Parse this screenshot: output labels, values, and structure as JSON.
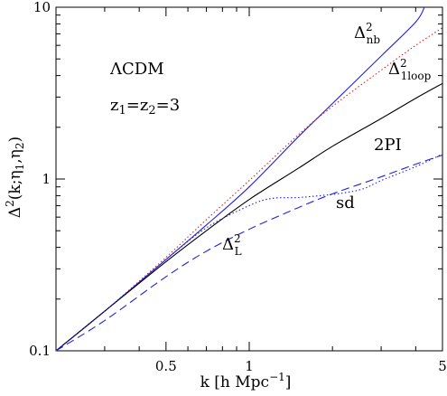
{
  "chart_data": {
    "type": "line",
    "xlabel": "k [h Mpc⁻¹]",
    "ylabel": "Δ²(k;η₁,η₂)",
    "xscale": "log",
    "yscale": "log",
    "xlim": [
      0.2,
      5
    ],
    "ylim": [
      0.1,
      10
    ],
    "x_ticks": [
      0.5,
      1,
      5
    ],
    "x_tick_labels": [
      "0.5",
      "1",
      "5"
    ],
    "y_ticks": [
      0.1,
      1,
      10
    ],
    "y_tick_labels": [
      "0.1",
      "1",
      "10"
    ],
    "grid": false,
    "annotations": [
      {
        "text": "ΛCDM"
      },
      {
        "text": "z₁=z₂=3"
      }
    ],
    "series": [
      {
        "name": "Δ²nb",
        "color": "#2222dd",
        "style": "solid",
        "x": [
          0.2,
          0.3,
          0.5,
          0.7,
          1.0,
          1.5,
          2.0,
          3.0,
          4.0,
          4.3
        ],
        "y": [
          0.1,
          0.17,
          0.34,
          0.54,
          0.9,
          1.75,
          2.75,
          5.2,
          8.2,
          10.0
        ]
      },
      {
        "name": "Δ²₁loop",
        "color": "#dd2222",
        "style": "dotted",
        "x": [
          0.2,
          0.3,
          0.5,
          0.7,
          1.0,
          1.5,
          2.0,
          3.0,
          4.0,
          5.0
        ],
        "y": [
          0.1,
          0.17,
          0.35,
          0.58,
          0.98,
          1.8,
          2.65,
          4.3,
          6.0,
          7.6
        ]
      },
      {
        "name": "2PI",
        "color": "#000000",
        "style": "solid",
        "x": [
          0.2,
          0.3,
          0.5,
          0.7,
          1.0,
          1.5,
          2.0,
          3.0,
          4.0,
          5.0
        ],
        "y": [
          0.1,
          0.17,
          0.33,
          0.5,
          0.76,
          1.15,
          1.55,
          2.25,
          2.95,
          3.6
        ]
      },
      {
        "name": "sd",
        "color": "#2222dd",
        "style": "dotted",
        "x": [
          0.2,
          0.3,
          0.5,
          0.7,
          1.0,
          1.2,
          1.5,
          1.8,
          2.2,
          2.6,
          3.0,
          4.0,
          5.0
        ],
        "y": [
          0.1,
          0.17,
          0.34,
          0.52,
          0.7,
          0.77,
          0.78,
          0.8,
          0.83,
          0.88,
          0.98,
          1.18,
          1.4
        ]
      },
      {
        "name": "Δ²L",
        "color": "#2222dd",
        "style": "dashed",
        "x": [
          0.2,
          0.3,
          0.5,
          0.7,
          1.0,
          1.5,
          2.0,
          3.0,
          4.0,
          5.0
        ],
        "y": [
          0.1,
          0.15,
          0.27,
          0.38,
          0.51,
          0.68,
          0.82,
          1.03,
          1.22,
          1.38
        ]
      }
    ],
    "curve_labels": [
      {
        "base": "Δ",
        "sup": "2",
        "sub": "nb",
        "series": 0
      },
      {
        "base": "Δ",
        "sup": "2",
        "sub": "1loop",
        "series": 1
      },
      {
        "base": "2PI",
        "sup": "",
        "sub": "",
        "series": 2
      },
      {
        "base": "sd",
        "sup": "",
        "sub": "",
        "series": 3
      },
      {
        "base": "Δ",
        "sup": "2",
        "sub": "L",
        "series": 4
      }
    ]
  }
}
